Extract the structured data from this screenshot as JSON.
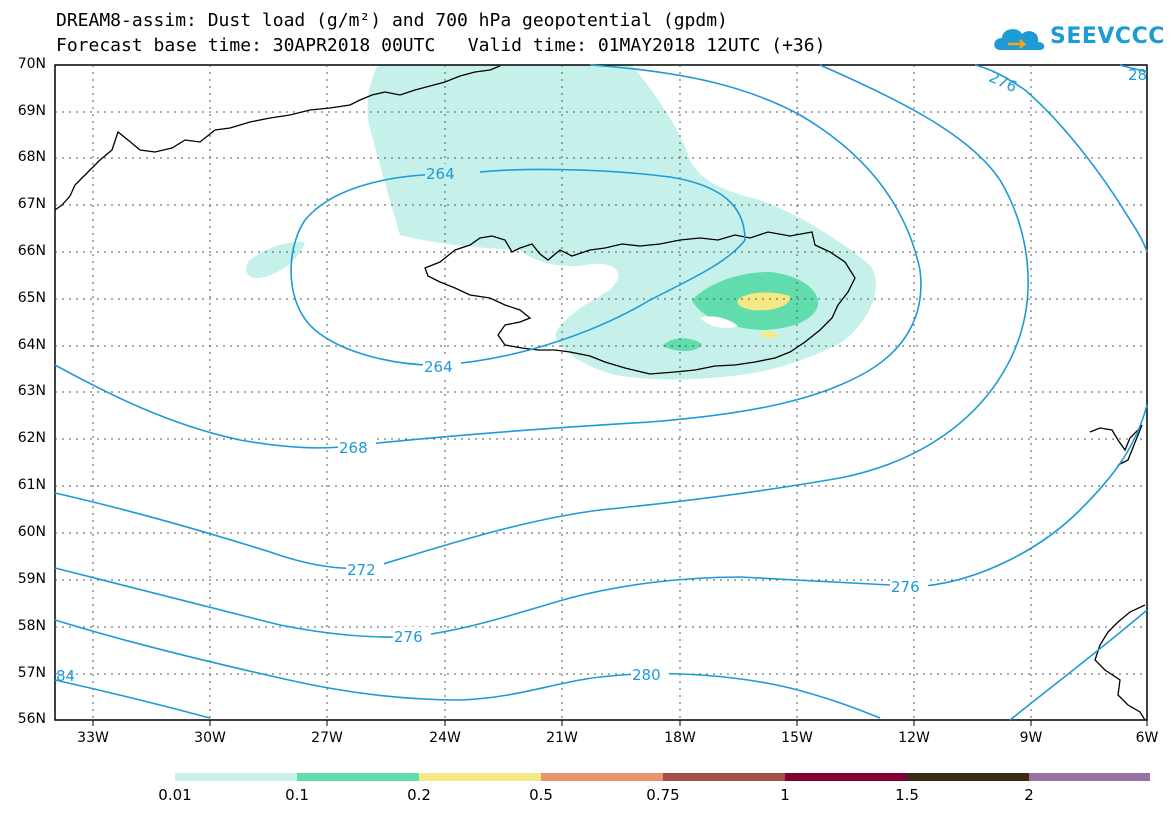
{
  "title": {
    "line1": "DREAM8-assim: Dust load (g/m²) and 700 hPa geopotential (gpdm)",
    "line2": "Forecast base time: 30APR2018 00UTC   Valid time: 01MAY2018 12UTC (+36)"
  },
  "logo": {
    "text": "SEEVCCC",
    "icon": "cloud-icon"
  },
  "map": {
    "lat_labels": [
      "70N",
      "69N",
      "68N",
      "67N",
      "66N",
      "65N",
      "64N",
      "63N",
      "62N",
      "61N",
      "60N",
      "59N",
      "58N",
      "57N",
      "56N"
    ],
    "lon_labels": [
      "33W",
      "30W",
      "27W",
      "24W",
      "21W",
      "18W",
      "15W",
      "12W",
      "9W",
      "6W"
    ],
    "contour_labels": [
      "264",
      "264",
      "268",
      "272",
      "276",
      "276",
      "280",
      "276",
      "84",
      "28"
    ],
    "contour_color": "#1e9ad6",
    "coastline_color": "#000000"
  },
  "colorbar": {
    "labels": [
      "0.01",
      "0.1",
      "0.2",
      "0.5",
      "0.75",
      "1",
      "1.5",
      "2"
    ],
    "colors": [
      "#c6f1ea",
      "#60dcad",
      "#f6e883",
      "#e9936a",
      "#a84e48",
      "#800031",
      "#3d2a14",
      "#9672a6"
    ]
  }
}
